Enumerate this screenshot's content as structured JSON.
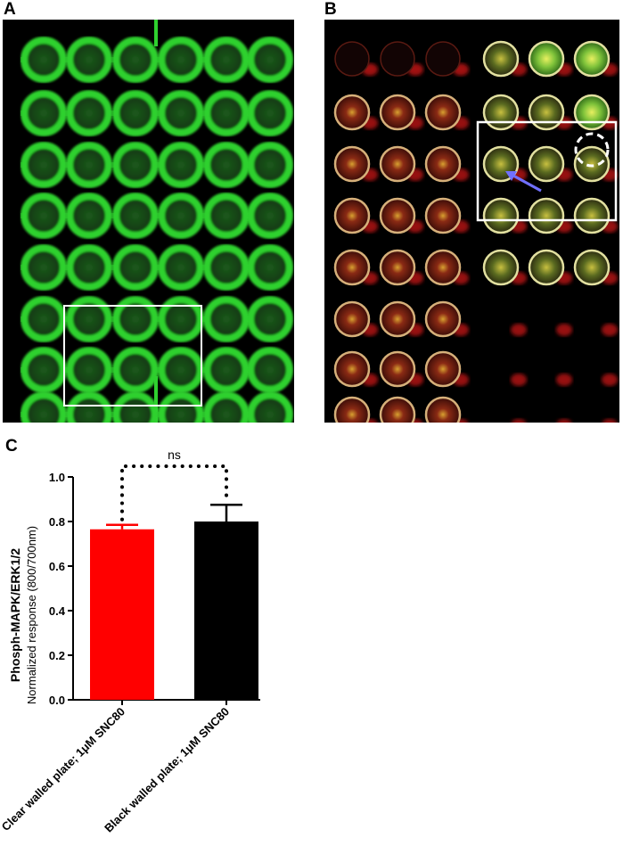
{
  "panels": {
    "a": {
      "label": "A"
    },
    "b": {
      "label": "B"
    },
    "c": {
      "label": "C"
    }
  },
  "plate_a": {
    "columns": 6,
    "rows": 8,
    "well_color": "#2fd12f",
    "background": "#000000"
  },
  "plate_b": {
    "columns": 6,
    "rows": 8,
    "background": "#000000"
  },
  "chart_data": {
    "type": "bar",
    "categories": [
      "Clear walled plate; 1μM SNC80",
      "Black walled plate; 1μM SNC80"
    ],
    "values": [
      0.765,
      0.8
    ],
    "errors": [
      0.02,
      0.075
    ],
    "colors": [
      "#ff0000",
      "#000000"
    ],
    "ylabel_line1": "Phosph-MAPK/ERK1/2",
    "ylabel_line2": "Normalized response (800/700nm)",
    "ylim": [
      0.0,
      1.0
    ],
    "yticks": [
      "0.0",
      "0.2",
      "0.4",
      "0.6",
      "0.8",
      "1.0"
    ],
    "annotation": "ns"
  }
}
